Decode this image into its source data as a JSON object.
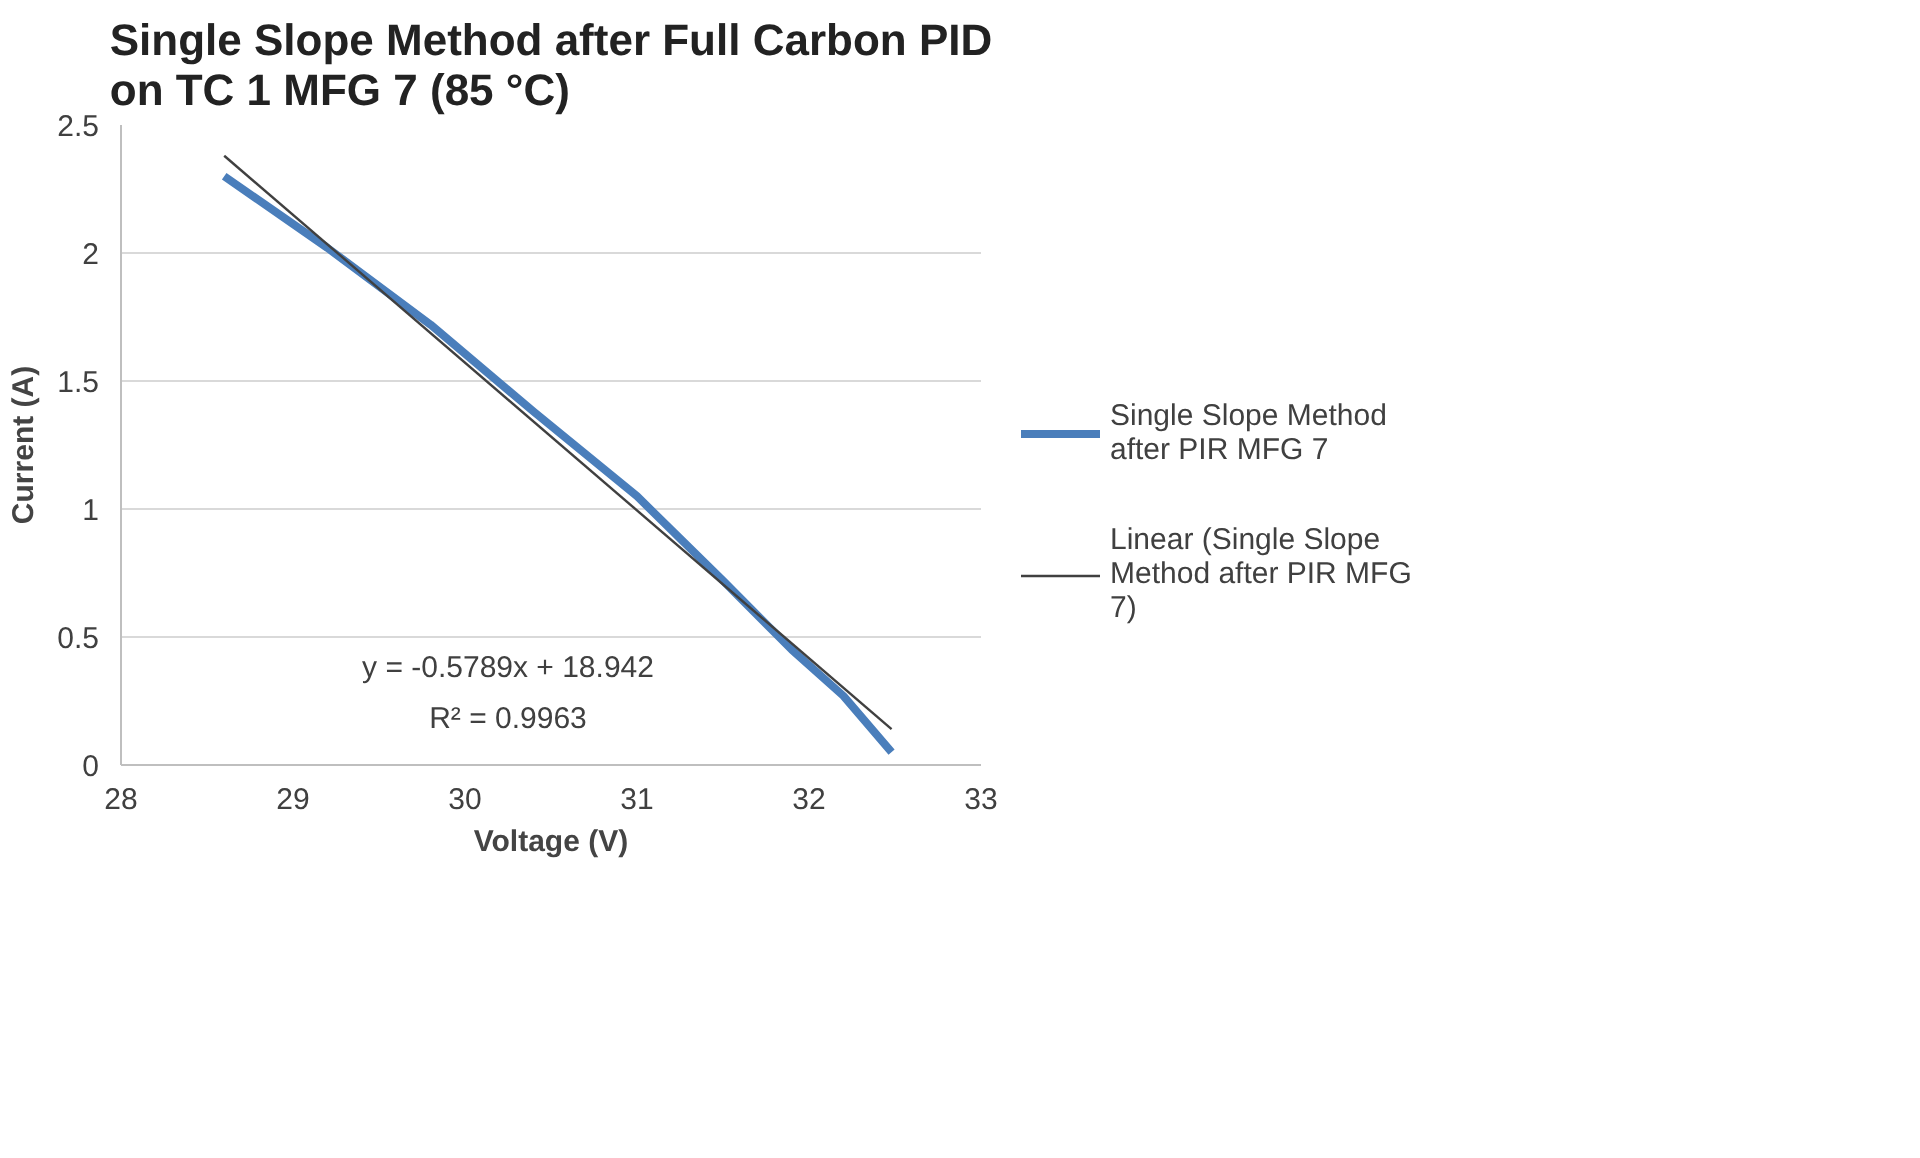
{
  "chart_data": {
    "type": "line",
    "title": "Single Slope Method after Full Carbon PID\non TC 1 MFG 7 (85 °C)",
    "xlabel": "Voltage (V)",
    "ylabel": "Current (A)",
    "series": [
      {
        "name": "Single Slope Method after PIR MFG 7",
        "color": "#4a7ebb",
        "x": [
          28.6,
          29.2,
          29.8,
          30.4,
          31.0,
          31.5,
          31.9,
          32.2,
          32.48
        ],
        "values": [
          2.3,
          2.02,
          1.72,
          1.38,
          1.05,
          0.72,
          0.45,
          0.27,
          0.05
        ]
      },
      {
        "name": "Linear (Single Slope Method after PIR MFG 7)",
        "color": "#404040",
        "x": [
          28.6,
          32.48
        ],
        "values": [
          2.38,
          0.14
        ]
      }
    ],
    "annotations": [
      "y = -0.5789x + 18.942",
      "R² = 0.9963"
    ],
    "xlim": [
      28,
      33
    ],
    "xticks": [
      28,
      29,
      30,
      31,
      32,
      33
    ],
    "ylim": [
      0,
      2.5
    ],
    "yticks": [
      0,
      0.5,
      1,
      1.5,
      2,
      2.5
    ],
    "grid": "y",
    "legend": "right",
    "marker": "none",
    "line_style": "solid"
  }
}
